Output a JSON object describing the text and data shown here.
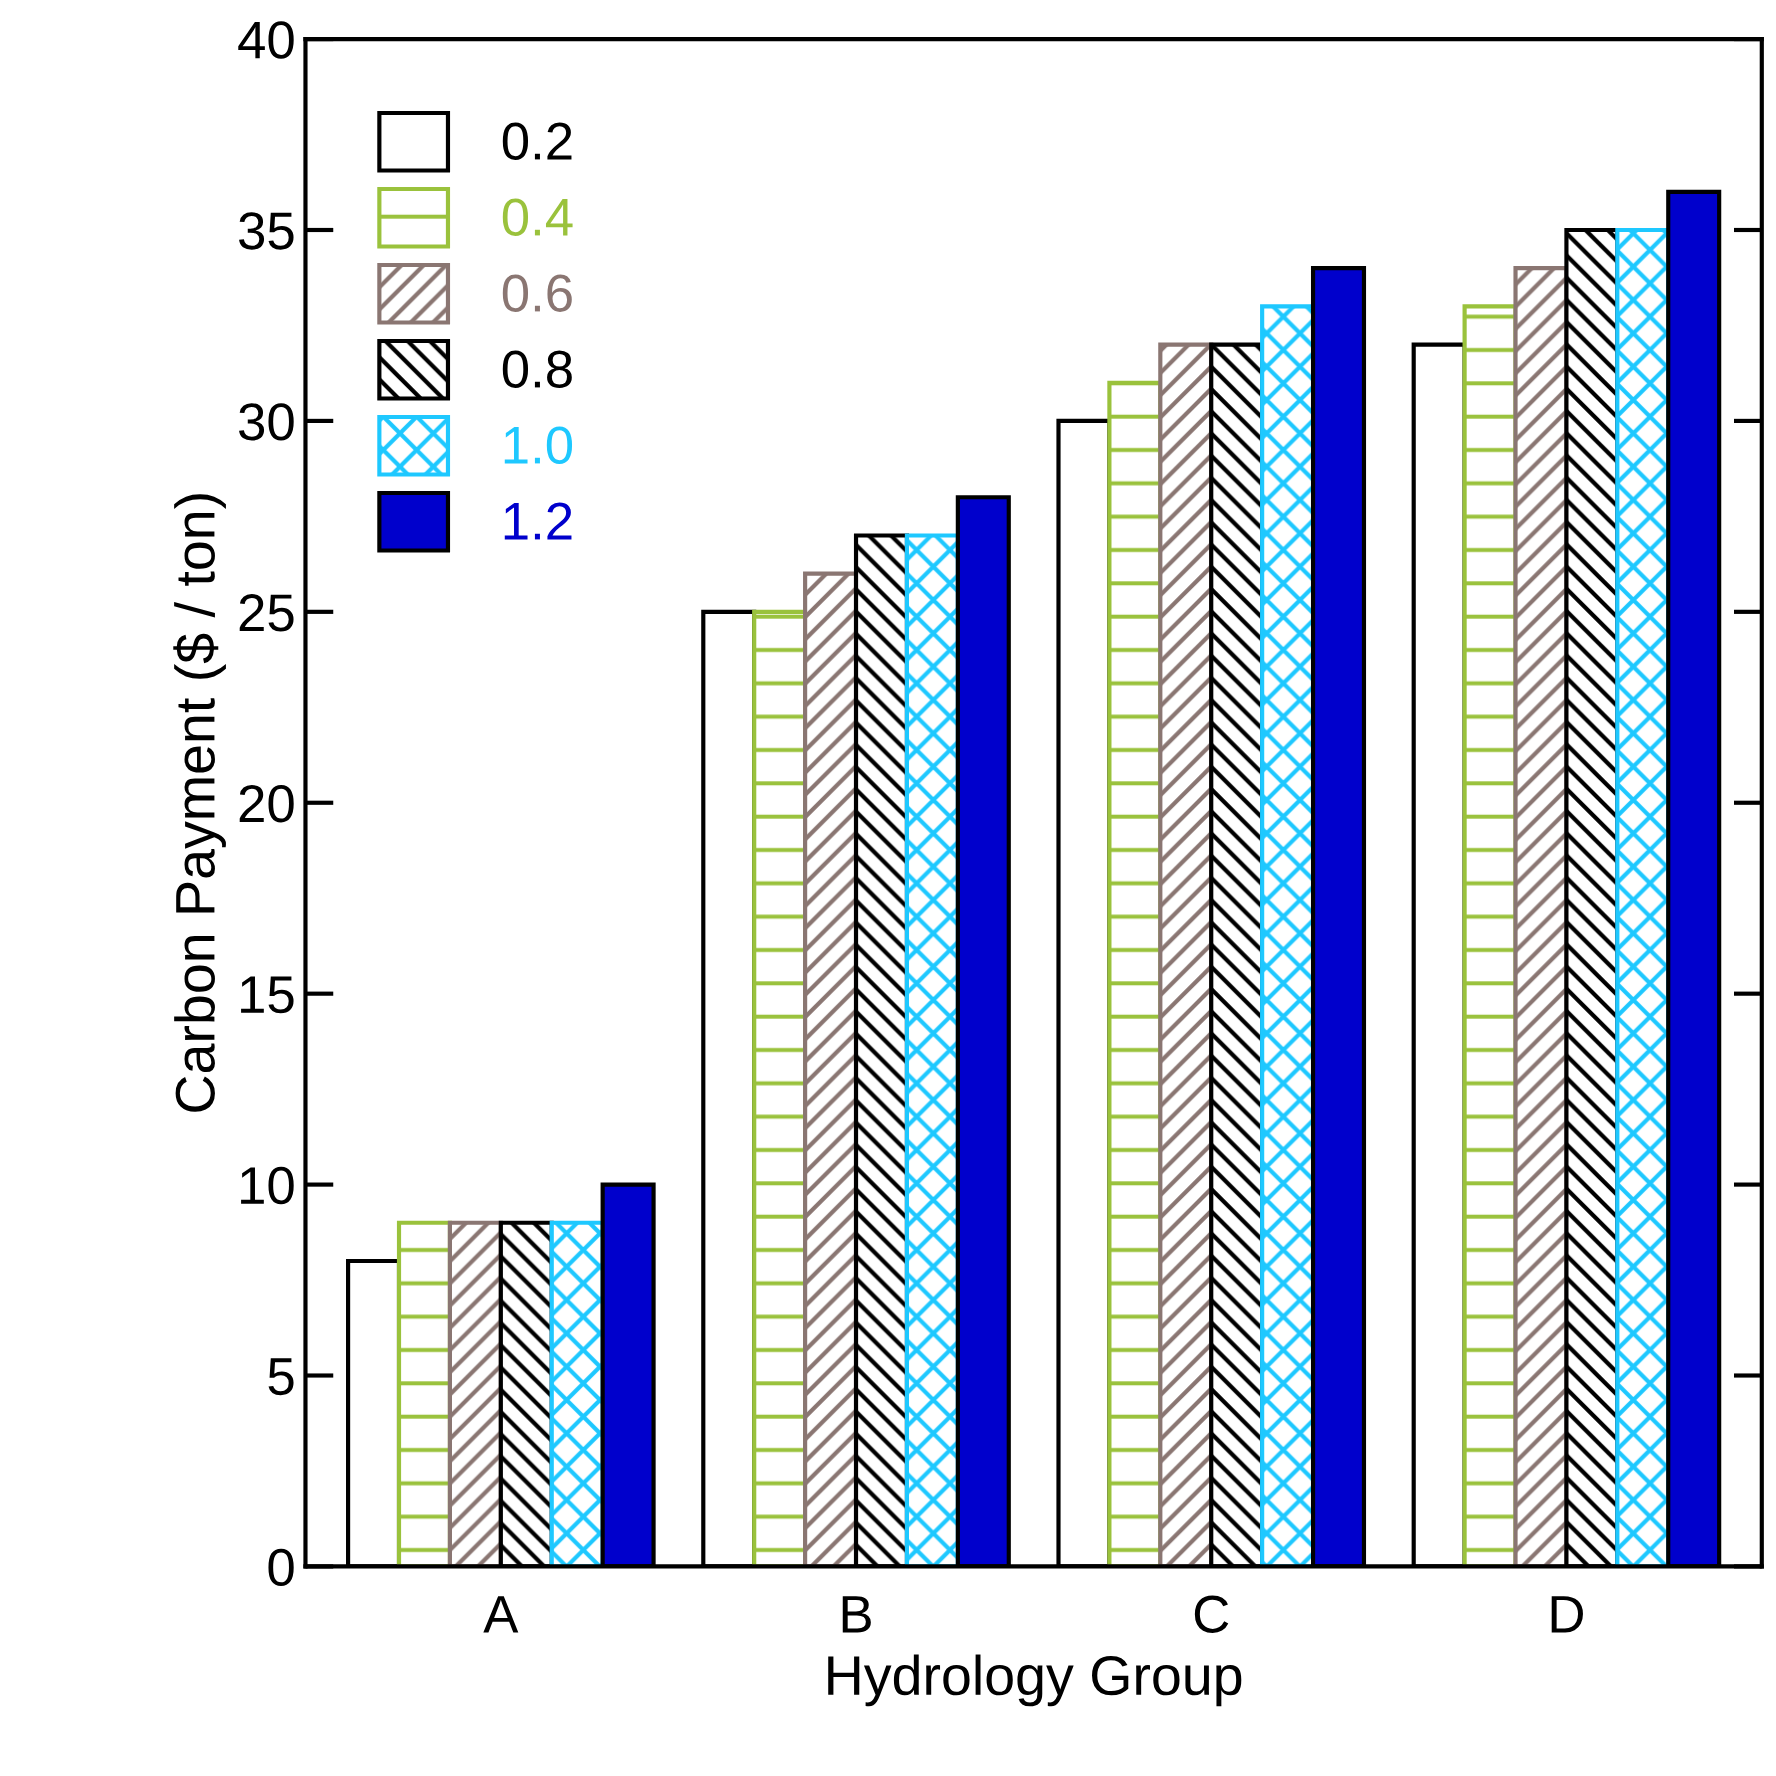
{
  "chart_data": {
    "type": "bar",
    "xlabel": "Hydrology Group",
    "ylabel": "Carbon Payment ($ / ton)",
    "categories": [
      "A",
      "B",
      "C",
      "D"
    ],
    "series": [
      {
        "name": "0.2",
        "color": "#ffffff",
        "values": [
          8,
          25,
          30,
          32
        ]
      },
      {
        "name": "0.4",
        "color": "#9ac23c",
        "values": [
          9,
          25,
          31,
          33
        ]
      },
      {
        "name": "0.6",
        "color": "#8a7672",
        "values": [
          9,
          26,
          32,
          34
        ]
      },
      {
        "name": "0.8",
        "color": "#000000",
        "values": [
          9,
          27,
          32,
          35
        ]
      },
      {
        "name": "1.0",
        "color": "#1ec8ff",
        "values": [
          9,
          27,
          33,
          35
        ]
      },
      {
        "name": "1.2",
        "color": "#0000cc",
        "values": [
          10,
          28,
          34,
          36
        ]
      }
    ],
    "ylim": [
      0,
      40
    ],
    "yticks": [
      0,
      5,
      10,
      15,
      20,
      25,
      30,
      35,
      40
    ],
    "legend": "top left",
    "grid": false
  }
}
